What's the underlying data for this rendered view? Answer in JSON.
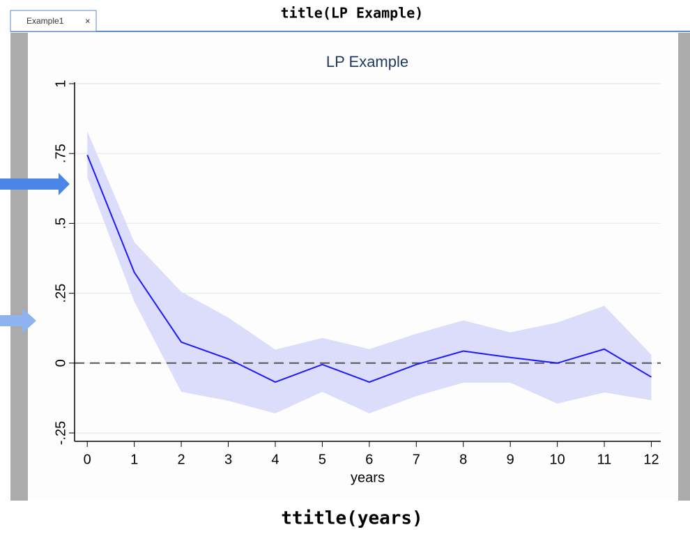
{
  "tab": {
    "label": "Example1",
    "close": "×"
  },
  "annotations": {
    "top": "title(LP Example)",
    "bottom": "ttitle(years)"
  },
  "chart_data": {
    "type": "line",
    "title": "LP Example",
    "xlabel": "years",
    "x": [
      0,
      1,
      2,
      3,
      4,
      5,
      6,
      7,
      8,
      9,
      10,
      11,
      12
    ],
    "series": [
      {
        "color": "#1a1aff",
        "values": [
          0.745,
          0.325,
          0.075,
          0.015,
          -0.068,
          -0.005,
          -0.068,
          -0.005,
          0.043,
          0.02,
          0.0,
          0.05,
          -0.05
        ]
      }
    ],
    "band": {
      "color": "#d8d8fb",
      "upper": [
        0.83,
        0.433,
        0.255,
        0.163,
        0.048,
        0.09,
        0.05,
        0.105,
        0.153,
        0.11,
        0.145,
        0.205,
        0.03
      ],
      "lower": [
        0.665,
        0.22,
        -0.103,
        -0.135,
        -0.18,
        -0.103,
        -0.18,
        -0.118,
        -0.07,
        -0.07,
        -0.145,
        -0.105,
        -0.133
      ]
    },
    "hline": 0,
    "xlim": [
      -0.27,
      12.2
    ],
    "ylim": [
      -0.28,
      1.0
    ],
    "xticks": [
      0,
      1,
      2,
      3,
      4,
      5,
      6,
      7,
      8,
      9,
      10,
      11,
      12
    ],
    "yticks": [
      {
        "value": -0.25,
        "label": "-.25"
      },
      0,
      {
        "value": 0.25,
        "label": ".25"
      },
      {
        "value": 0.5,
        "label": ".5"
      },
      {
        "value": 0.75,
        "label": ".75"
      },
      1
    ],
    "grid": true
  }
}
